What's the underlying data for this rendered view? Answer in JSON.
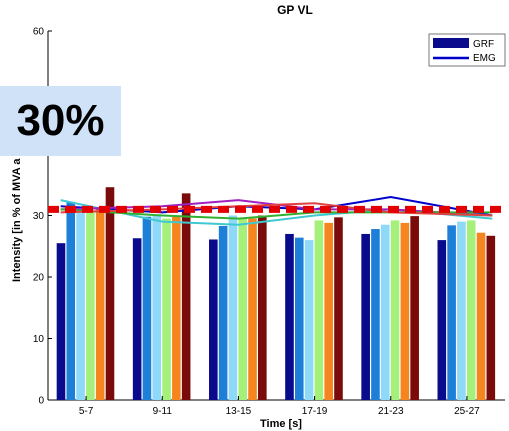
{
  "chart_data": {
    "type": "bar",
    "title": "GP VL",
    "xlabel": "Time [s]",
    "ylabel": "Intensity [in % of MVA a",
    "ylim": [
      0,
      60
    ],
    "yticks": [
      0,
      10,
      20,
      30,
      40,
      50,
      60
    ],
    "yticks_visible": [
      "0",
      "10",
      "20",
      "30",
      "",
      "",
      "60"
    ],
    "categories": [
      "5-7",
      "9-11",
      "13-15",
      "17-19",
      "21-23",
      "25-27"
    ],
    "series": [
      {
        "color": "#0a0a8c",
        "values": [
          25.5,
          26.3,
          26.1,
          27.0,
          27.0,
          26.0
        ]
      },
      {
        "color": "#1e7fd8",
        "values": [
          32.2,
          29.8,
          28.3,
          26.4,
          27.8,
          28.4
        ]
      },
      {
        "color": "#8ed8f8",
        "values": [
          31.0,
          30.0,
          30.0,
          26.0,
          28.5,
          29.0
        ]
      },
      {
        "color": "#a4f07a",
        "values": [
          30.5,
          29.5,
          29.5,
          29.2,
          29.2,
          29.2
        ]
      },
      {
        "color": "#f5861f",
        "values": [
          31.0,
          29.8,
          29.5,
          28.8,
          28.8,
          27.2
        ]
      },
      {
        "color": "#7a0b0b",
        "values": [
          34.6,
          33.6,
          30.0,
          29.7,
          29.9,
          26.7
        ]
      }
    ],
    "emg_lines": [
      {
        "color": "#0000cc",
        "values": [
          31.5,
          30.5,
          31.5,
          31.0,
          33.0,
          30.0
        ]
      },
      {
        "color": "#40c8d0",
        "values": [
          32.5,
          29.0,
          28.5,
          30.0,
          31.0,
          29.5
        ]
      },
      {
        "color": "#a020c0",
        "values": [
          31.0,
          31.5,
          32.5,
          31.0,
          31.0,
          30.0
        ]
      },
      {
        "color": "#30b030",
        "values": [
          31.0,
          30.0,
          29.5,
          30.5,
          30.5,
          30.5
        ]
      },
      {
        "color": "#e04040",
        "values": [
          30.5,
          31.0,
          31.5,
          32.0,
          30.5,
          30.0
        ]
      }
    ],
    "reference_line": {
      "value": 31,
      "color": "#e30000"
    },
    "legend": {
      "position": "top-right",
      "entries": [
        "GRF",
        "EMG"
      ],
      "colors": [
        "#0a0a8c",
        "#0000cc"
      ]
    },
    "grid": false
  },
  "callout": {
    "text": "30%"
  }
}
